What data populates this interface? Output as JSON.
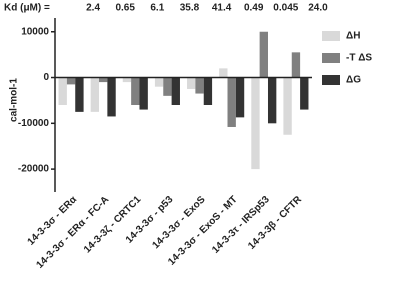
{
  "chart_data": {
    "type": "bar",
    "kd_label": "Kd (μM) =",
    "kd_values": [
      "2.4",
      "0.65",
      "6.1",
      "35.8",
      "41.4",
      "0.49",
      "0.045",
      "24.0"
    ],
    "y_label": "cal-mol-1",
    "categories": [
      "14-3-3σ - ERα",
      "14-3-3σ - ERα - FC-A",
      "14-3-3ζ - CRTC1",
      "14-3-3σ - p53",
      "14-3-3σ - ExoS",
      "14-3-3σ - ExoS - MT",
      "14-3-3τ - IRSp53",
      "14-3-3β - CFTR"
    ],
    "series": [
      {
        "name": "ΔH",
        "color": "#d9d9d9",
        "values": [
          -6000,
          -7500,
          -1000,
          -2000,
          -2500,
          2000,
          -20000,
          -12500
        ]
      },
      {
        "name": "-T ΔS",
        "color": "#808080",
        "values": [
          -1500,
          -1000,
          -6000,
          -4000,
          -3500,
          -10800,
          10000,
          5500
        ]
      },
      {
        "name": "ΔG",
        "color": "#333333",
        "values": [
          -7500,
          -8500,
          -7000,
          -6000,
          -6000,
          -8700,
          -10000,
          -7000
        ]
      }
    ],
    "ylim": [
      -25000,
      13000
    ],
    "yticks": [
      -20000,
      -10000,
      0,
      10000
    ],
    "legend": "right"
  }
}
